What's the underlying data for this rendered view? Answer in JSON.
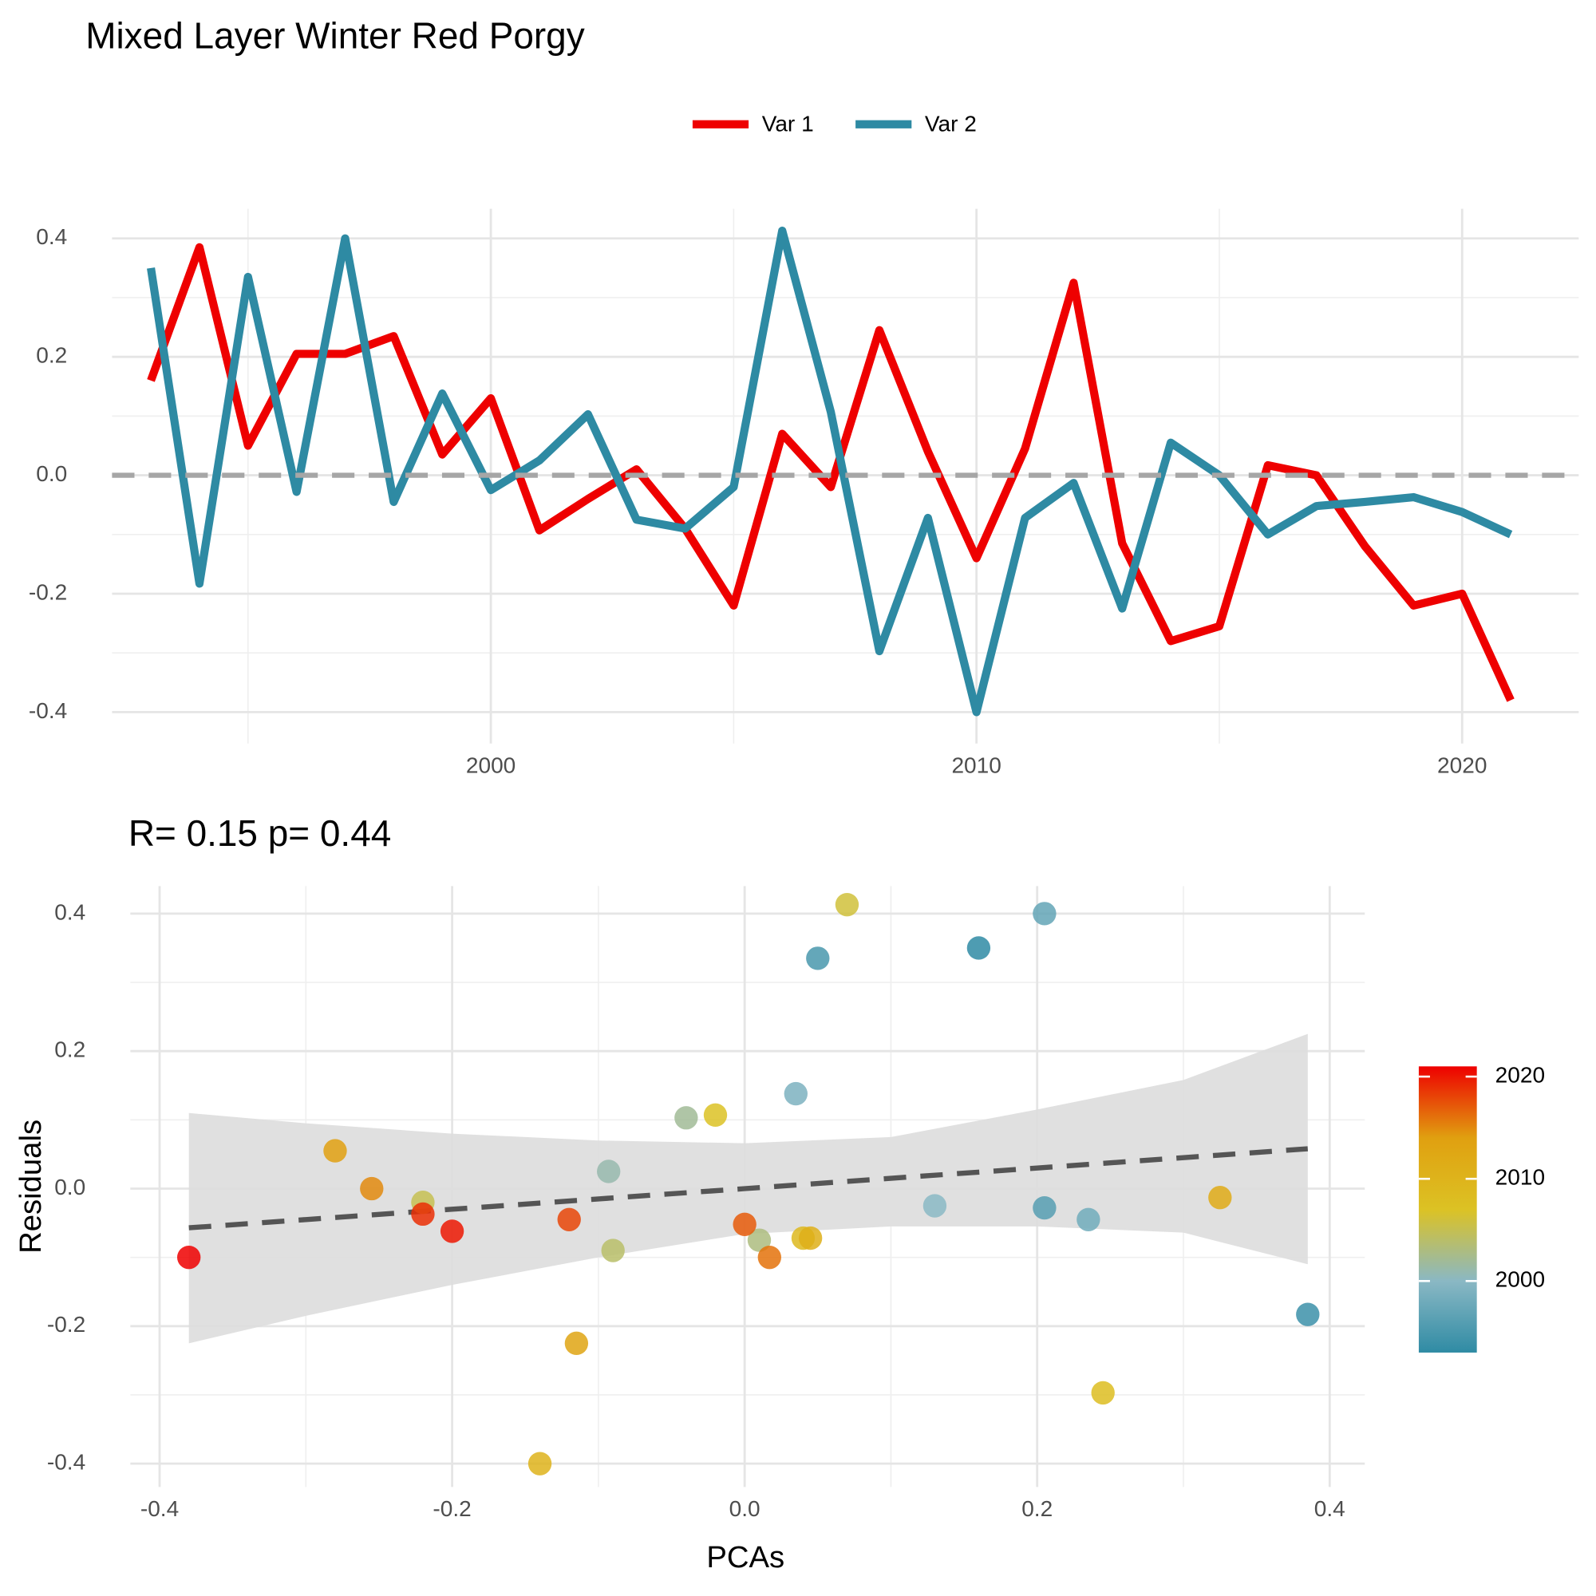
{
  "chart_data": [
    {
      "type": "line",
      "title": "Mixed Layer Winter  Red Porgy",
      "legend": "top",
      "grid": true,
      "reference_line": 0,
      "x": [
        1993,
        1994,
        1995,
        1996,
        1997,
        1998,
        1999,
        2000,
        2001,
        2002,
        2003,
        2004,
        2005,
        2006,
        2007,
        2008,
        2009,
        2010,
        2011,
        2012,
        2013,
        2014,
        2015,
        2016,
        2017,
        2018,
        2019,
        2020,
        2021
      ],
      "series": [
        {
          "name": "Var 1",
          "color": "#ee0000",
          "values": [
            0.16,
            0.385,
            0.05,
            0.205,
            0.205,
            0.235,
            0.035,
            0.13,
            -0.093,
            -0.04,
            0.01,
            -0.09,
            -0.22,
            0.07,
            -0.02,
            0.245,
            0.04,
            -0.14,
            0.045,
            0.325,
            -0.115,
            -0.28,
            -0.255,
            0.017,
            0.0,
            -0.12,
            -0.22,
            -0.2,
            -0.38
          ]
        },
        {
          "name": "Var 2",
          "color": "#2e8aa3",
          "values": [
            0.35,
            -0.183,
            0.335,
            -0.028,
            0.4,
            -0.045,
            0.138,
            -0.025,
            0.025,
            0.103,
            -0.075,
            -0.09,
            -0.02,
            0.413,
            0.107,
            -0.297,
            -0.072,
            -0.4,
            -0.072,
            -0.013,
            -0.225,
            0.055,
            0.0,
            -0.1,
            -0.052,
            -0.045,
            -0.037,
            -0.062,
            -0.1
          ]
        }
      ],
      "xlim": [
        1992.2,
        2022.4
      ],
      "xticks": [
        2000,
        2010,
        2020
      ],
      "ylim": [
        -0.453,
        0.45
      ],
      "yticks": [
        -0.4,
        -0.2,
        {
          "value": 0,
          "label": "0.0"
        },
        0.2,
        0.4
      ]
    },
    {
      "type": "scatter",
      "title": "R= 0.15  p= 0.44",
      "x_label": "PCAs",
      "y_label": "Residuals",
      "grid": true,
      "x": [
        0.16,
        0.385,
        0.05,
        0.205,
        0.205,
        0.235,
        0.035,
        0.13,
        -0.093,
        -0.04,
        0.01,
        -0.09,
        -0.22,
        0.07,
        -0.02,
        0.245,
        0.04,
        -0.14,
        0.045,
        0.325,
        -0.115,
        -0.28,
        -0.255,
        0.017,
        0.0,
        -0.12,
        -0.22,
        -0.2,
        -0.38
      ],
      "y": [
        0.35,
        -0.183,
        0.335,
        -0.028,
        0.4,
        -0.045,
        0.138,
        -0.025,
        0.025,
        0.103,
        -0.075,
        -0.09,
        -0.02,
        0.413,
        0.107,
        -0.297,
        -0.072,
        -0.4,
        -0.072,
        -0.013,
        -0.225,
        0.055,
        0.0,
        -0.1,
        -0.052,
        -0.045,
        -0.037,
        -0.062,
        -0.1
      ],
      "color_values": [
        1993,
        1994,
        1995,
        1996,
        1997,
        1998,
        1999,
        2000,
        2001,
        2002,
        2003,
        2004,
        2005,
        2006,
        2007,
        2008,
        2009,
        2010,
        2011,
        2012,
        2013,
        2014,
        2015,
        2016,
        2017,
        2018,
        2019,
        2020,
        2021
      ],
      "colorbar": {
        "lim": [
          1993,
          2021
        ],
        "ticks": [
          2000,
          2010,
          2020
        ],
        "palette": [
          "#2f8ba4",
          "#8ab8c4",
          "#dcc224",
          "#e0a010",
          "#ee0000"
        ]
      },
      "fit": {
        "x": [
          -0.38,
          -0.3,
          -0.2,
          -0.1,
          0,
          0.1,
          0.2,
          0.3,
          0.385
        ],
        "y": [
          -0.057,
          -0.045,
          -0.03,
          -0.015,
          0.0,
          0.015,
          0.03,
          0.045,
          0.058
        ],
        "upper": [
          0.11,
          0.095,
          0.08,
          0.07,
          0.066,
          0.075,
          0.115,
          0.158,
          0.225
        ],
        "lower": [
          -0.225,
          -0.185,
          -0.14,
          -0.1,
          -0.066,
          -0.055,
          -0.055,
          -0.064,
          -0.11
        ],
        "color": "#555555",
        "band_color": "#dddddd"
      },
      "xlim": [
        -0.42,
        0.424
      ],
      "xticks": [
        -0.4,
        -0.2,
        {
          "value": 0,
          "label": "0.0"
        },
        0.2,
        0.4
      ],
      "ylim": [
        -0.434,
        0.44
      ],
      "yticks": [
        -0.4,
        -0.2,
        {
          "value": 0,
          "label": "0.0"
        },
        0.2,
        0.4
      ]
    }
  ]
}
